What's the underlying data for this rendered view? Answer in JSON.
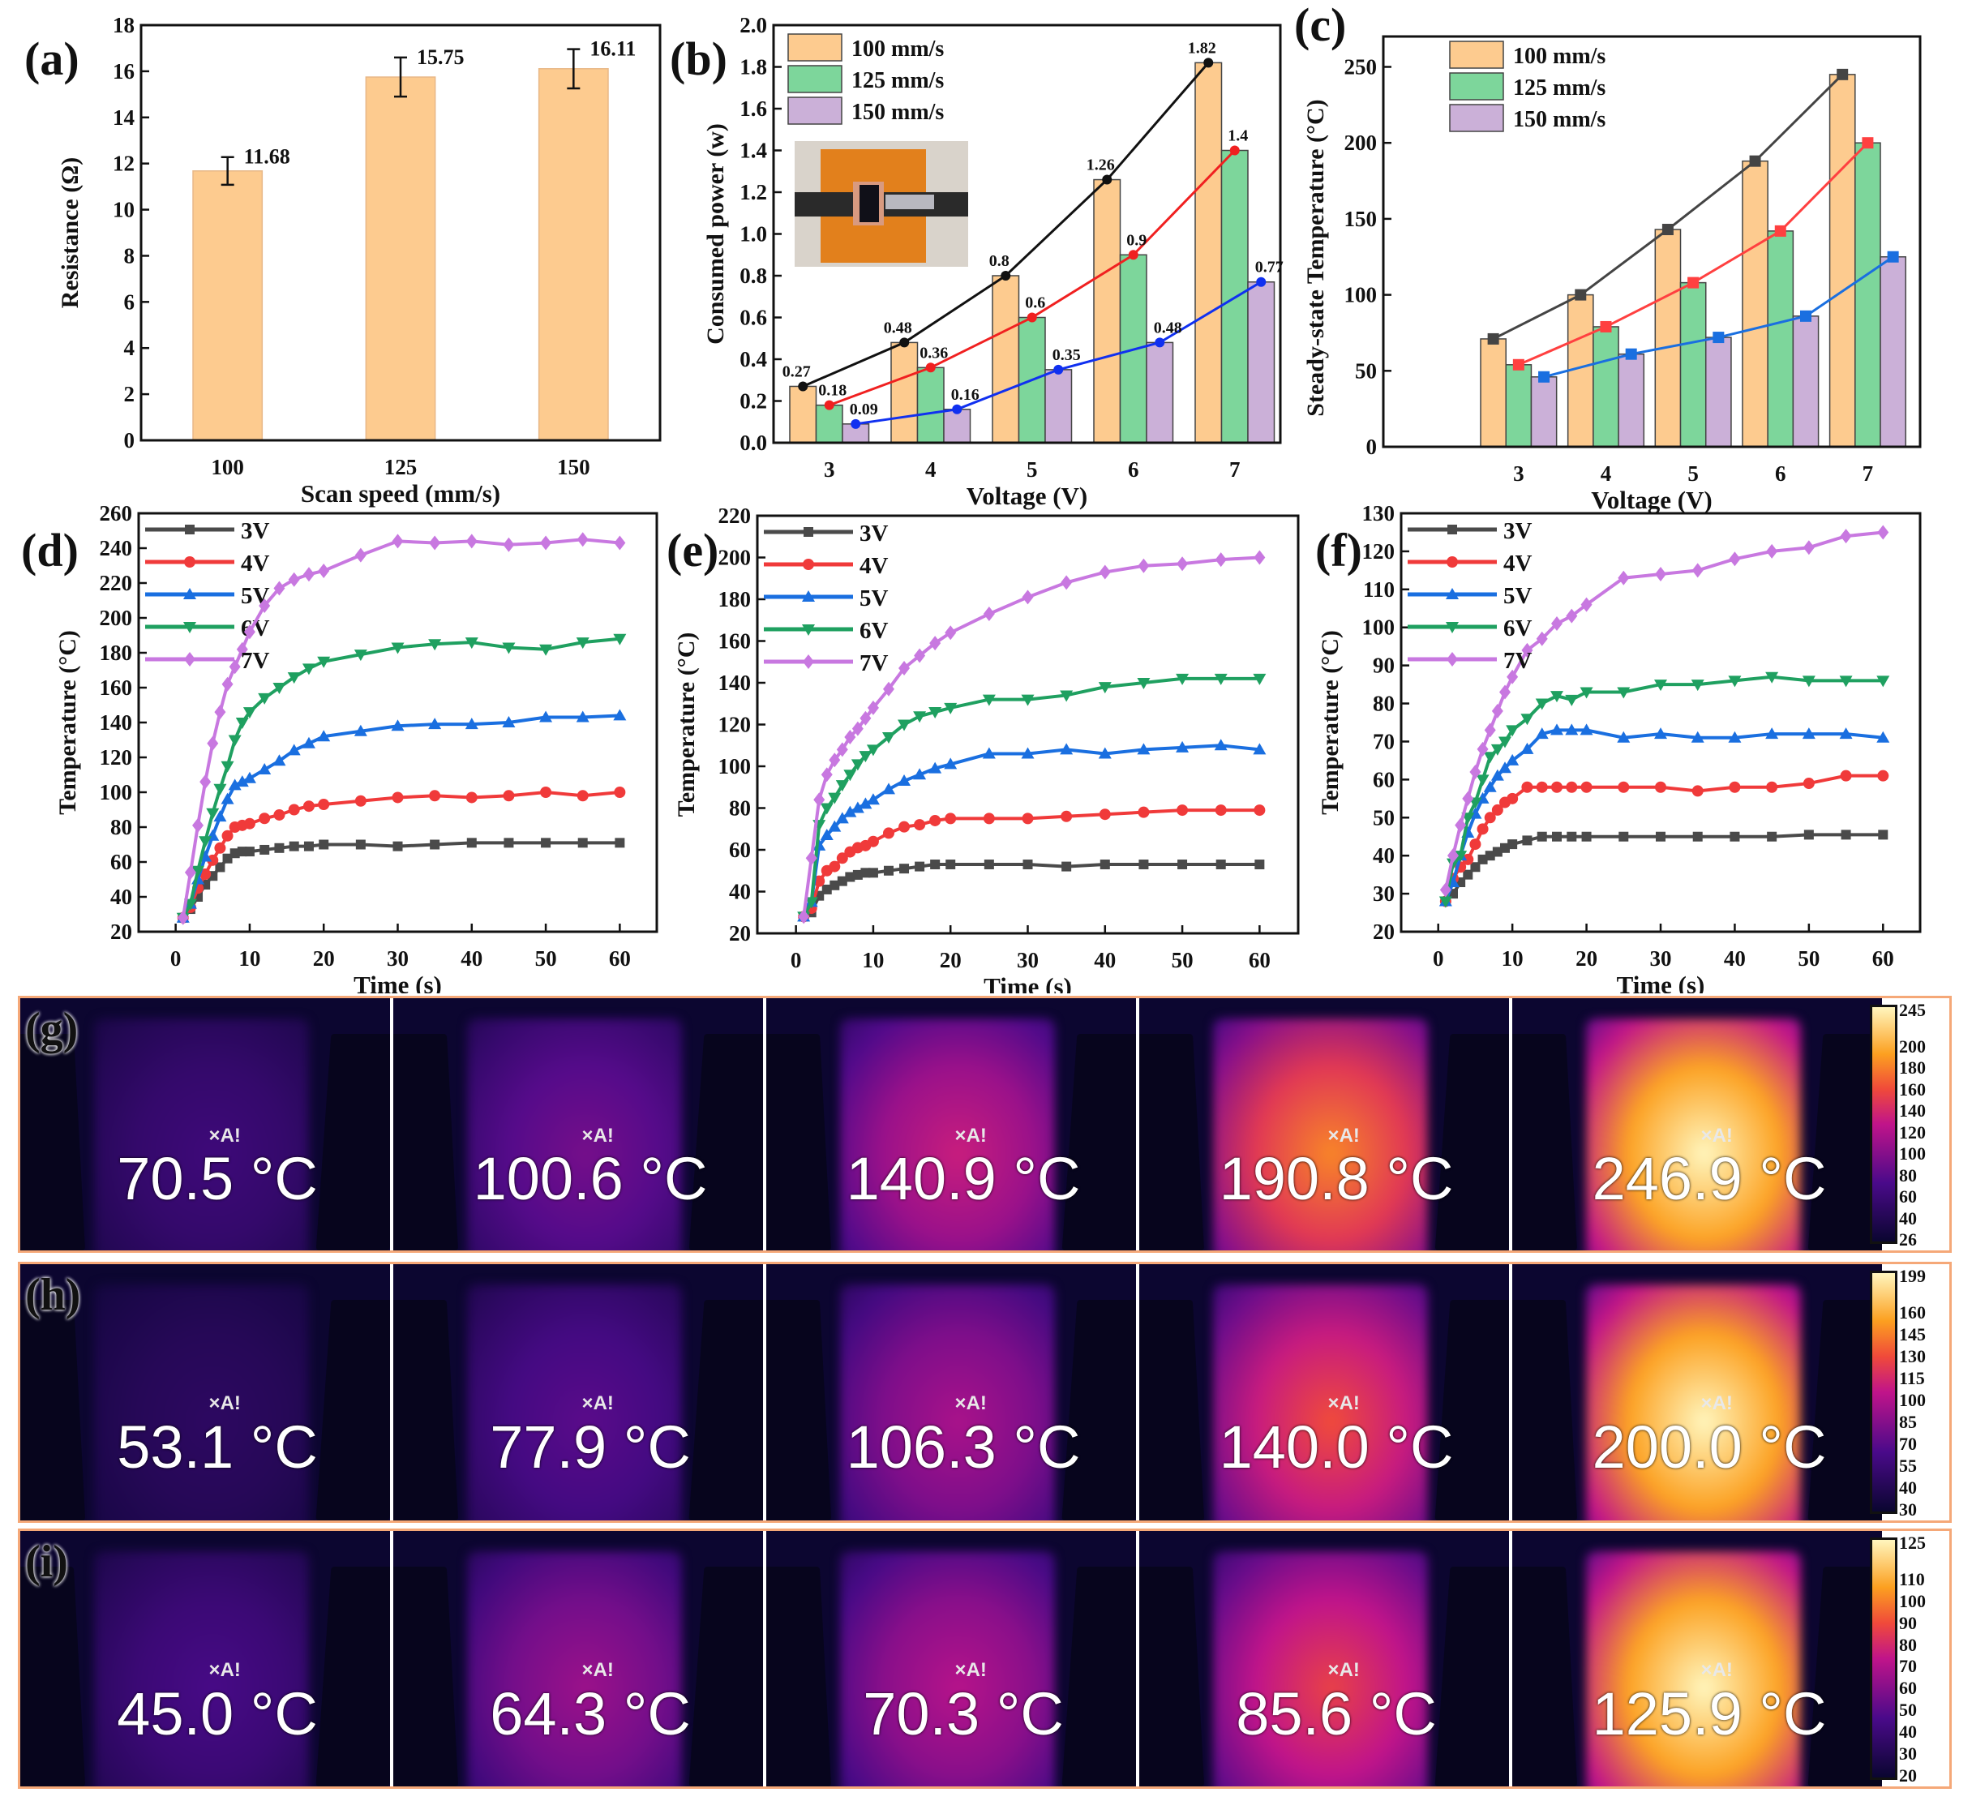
{
  "chart_data": [
    {
      "panel": "(a)",
      "type": "bar",
      "categories": [
        "100",
        "125",
        "150"
      ],
      "values": [
        11.68,
        15.75,
        16.11
      ],
      "errors": [
        0.6,
        0.85,
        0.85
      ],
      "data_labels": [
        "11.68",
        "15.75",
        "16.11"
      ],
      "xlabel": "Scan speed (mm/s)",
      "ylabel": "Resistance (Ω)",
      "ylim": [
        0,
        18
      ],
      "yticks": [
        "0",
        "2",
        "4",
        "6",
        "8",
        "10",
        "12",
        "14",
        "16",
        "18"
      ],
      "color": "#fdcb8f"
    },
    {
      "panel": "(b)",
      "type": "bar",
      "categories": [
        "3",
        "4",
        "5",
        "6",
        "7"
      ],
      "xlabel": "Voltage (V)",
      "ylabel": "Consumed power (w)",
      "ylim": [
        0,
        2.0
      ],
      "yticks": [
        "0.0",
        "0.2",
        "0.4",
        "0.6",
        "0.8",
        "1.0",
        "1.2",
        "1.4",
        "1.6",
        "1.8",
        "2.0"
      ],
      "legend": "top-left",
      "series": [
        {
          "name": "100 mm/s",
          "values": [
            0.27,
            0.48,
            0.8,
            1.26,
            1.82
          ],
          "labels": [
            "0.27",
            "0.48",
            "0.8",
            "1.26",
            "1.82"
          ],
          "color": "#fdcb8f",
          "line_color": "#111111"
        },
        {
          "name": "125 mm/s",
          "values": [
            0.18,
            0.36,
            0.6,
            0.9,
            1.4
          ],
          "labels": [
            "0.18",
            "0.36",
            "0.6",
            "0.9",
            "1.4"
          ],
          "color": "#7dd69b",
          "line_color": "#f02020"
        },
        {
          "name": "150 mm/s",
          "values": [
            0.09,
            0.16,
            0.35,
            0.48,
            0.77
          ],
          "labels": [
            "0.09",
            "0.16",
            "0.35",
            "0.48",
            "0.77"
          ],
          "color": "#cbb0d8",
          "line_color": "#1030f0"
        }
      ]
    },
    {
      "panel": "(c)",
      "type": "bar",
      "categories": [
        "3",
        "4",
        "5",
        "6",
        "7"
      ],
      "xlabel": "Voltage (V)",
      "ylabel": "Steady-state Temperature (°C)",
      "ylim": [
        0,
        270
      ],
      "yticks": [
        "0",
        "50",
        "100",
        "150",
        "200",
        "250"
      ],
      "legend": "top-left",
      "series": [
        {
          "name": "100 mm/s",
          "values": [
            71,
            100,
            143,
            188,
            245
          ],
          "color": "#fdcb8f",
          "line_color": "#444444"
        },
        {
          "name": "125 mm/s",
          "values": [
            54,
            79,
            108,
            142,
            200
          ],
          "color": "#7dd69b",
          "line_color": "#ff4040"
        },
        {
          "name": "150 mm/s",
          "values": [
            46,
            61,
            72,
            86,
            125
          ],
          "color": "#cbb0d8",
          "line_color": "#1a6fe0"
        }
      ]
    },
    {
      "panel": "(d)",
      "type": "line",
      "xlabel": "Time (s)",
      "ylabel": "Temperature (°C)",
      "xlim": [
        -5,
        65
      ],
      "ylim": [
        20,
        260
      ],
      "xticks": [
        "0",
        "10",
        "20",
        "30",
        "40",
        "50",
        "60"
      ],
      "yticks": [
        "20",
        "40",
        "60",
        "80",
        "100",
        "120",
        "140",
        "160",
        "180",
        "200",
        "220",
        "240",
        "260"
      ],
      "legend": "top-left",
      "x": [
        1,
        2,
        3,
        4,
        5,
        6,
        7,
        8,
        9,
        10,
        12,
        14,
        16,
        18,
        20,
        25,
        30,
        35,
        40,
        45,
        50,
        55,
        60
      ],
      "series": [
        {
          "name": "3V",
          "color": "#4a4a4a",
          "marker": "square",
          "values": [
            28,
            33,
            40,
            47,
            52,
            57,
            62,
            65,
            66,
            66,
            67,
            68,
            69,
            69,
            70,
            70,
            69,
            70,
            71,
            71,
            71,
            71,
            71
          ]
        },
        {
          "name": "4V",
          "color": "#f03a3a",
          "marker": "circle",
          "values": [
            28,
            34,
            45,
            53,
            61,
            68,
            75,
            80,
            81,
            82,
            85,
            87,
            90,
            92,
            93,
            95,
            97,
            98,
            97,
            98,
            100,
            98,
            100
          ]
        },
        {
          "name": "5V",
          "color": "#1a6fe0",
          "marker": "triangle-up",
          "values": [
            28,
            36,
            50,
            63,
            75,
            86,
            96,
            104,
            106,
            108,
            113,
            118,
            124,
            128,
            132,
            135,
            138,
            139,
            139,
            140,
            143,
            143,
            144
          ]
        },
        {
          "name": "6V",
          "color": "#1fa060",
          "marker": "triangle-down",
          "values": [
            28,
            36,
            55,
            72,
            88,
            102,
            115,
            130,
            140,
            146,
            154,
            160,
            166,
            171,
            175,
            179,
            183,
            185,
            186,
            183,
            182,
            186,
            188
          ]
        },
        {
          "name": "7V",
          "color": "#c878e0",
          "marker": "diamond",
          "values": [
            28,
            54,
            81,
            106,
            128,
            146,
            162,
            172,
            182,
            192,
            207,
            217,
            222,
            225,
            227,
            236,
            244,
            243,
            244,
            242,
            243,
            245,
            243
          ]
        }
      ]
    },
    {
      "panel": "(e)",
      "type": "line",
      "xlabel": "Time (s)",
      "ylabel": "Temperature (°C)",
      "xlim": [
        -5,
        65
      ],
      "ylim": [
        20,
        220
      ],
      "xticks": [
        "0",
        "10",
        "20",
        "30",
        "40",
        "50",
        "60"
      ],
      "yticks": [
        "20",
        "40",
        "60",
        "80",
        "100",
        "120",
        "140",
        "160",
        "180",
        "200",
        "220"
      ],
      "legend": "top-left",
      "x": [
        1,
        2,
        3,
        4,
        5,
        6,
        7,
        8,
        9,
        10,
        12,
        14,
        16,
        18,
        20,
        25,
        30,
        35,
        40,
        45,
        50,
        55,
        60
      ],
      "series": [
        {
          "name": "3V",
          "color": "#4a4a4a",
          "marker": "square",
          "values": [
            28,
            30,
            38,
            41,
            43,
            45,
            47,
            48,
            49,
            49,
            50,
            51,
            52,
            53,
            53,
            53,
            53,
            52,
            53,
            53,
            53,
            53,
            53
          ]
        },
        {
          "name": "4V",
          "color": "#f03a3a",
          "marker": "circle",
          "values": [
            28,
            32,
            45,
            50,
            52,
            56,
            59,
            61,
            62,
            64,
            68,
            71,
            72,
            74,
            75,
            75,
            75,
            76,
            77,
            78,
            79,
            79,
            79
          ]
        },
        {
          "name": "5V",
          "color": "#1a6fe0",
          "marker": "triangle-up",
          "values": [
            28,
            35,
            62,
            67,
            71,
            75,
            78,
            80,
            82,
            84,
            89,
            93,
            96,
            99,
            101,
            106,
            106,
            108,
            106,
            108,
            109,
            110,
            108
          ]
        },
        {
          "name": "6V",
          "color": "#1fa060",
          "marker": "triangle-down",
          "values": [
            28,
            35,
            72,
            80,
            85,
            91,
            96,
            101,
            105,
            108,
            114,
            120,
            124,
            126,
            128,
            132,
            132,
            134,
            138,
            140,
            142,
            142,
            142
          ]
        },
        {
          "name": "7V",
          "color": "#c878e0",
          "marker": "diamond",
          "values": [
            28,
            56,
            84,
            96,
            103,
            108,
            114,
            118,
            123,
            128,
            137,
            147,
            153,
            159,
            164,
            173,
            181,
            188,
            193,
            196,
            197,
            199,
            200
          ]
        }
      ]
    },
    {
      "panel": "(f)",
      "type": "line",
      "xlabel": "Time (s)",
      "ylabel": "Temperature (°C)",
      "xlim": [
        -5,
        65
      ],
      "ylim": [
        20,
        130
      ],
      "xticks": [
        "0",
        "10",
        "20",
        "30",
        "40",
        "50",
        "60"
      ],
      "yticks": [
        "20",
        "30",
        "40",
        "50",
        "60",
        "70",
        "80",
        "90",
        "100",
        "110",
        "120",
        "130"
      ],
      "legend": "top-left",
      "x": [
        1,
        2,
        3,
        4,
        5,
        6,
        7,
        8,
        9,
        10,
        12,
        14,
        16,
        18,
        20,
        25,
        30,
        35,
        40,
        45,
        50,
        55,
        60
      ],
      "series": [
        {
          "name": "3V",
          "color": "#4a4a4a",
          "marker": "square",
          "values": [
            28,
            30,
            33,
            35,
            37,
            39,
            40,
            41,
            42,
            43,
            44,
            45,
            45,
            45,
            45,
            45,
            45,
            45,
            45,
            45,
            45.5,
            45.5,
            45.5
          ]
        },
        {
          "name": "4V",
          "color": "#f03a3a",
          "marker": "circle",
          "values": [
            28,
            34,
            37,
            39,
            43,
            47,
            50,
            52,
            54,
            55,
            58,
            58,
            58,
            58,
            58,
            58,
            58,
            57,
            58,
            58,
            59,
            61,
            61
          ]
        },
        {
          "name": "5V",
          "color": "#1a6fe0",
          "marker": "triangle-up",
          "values": [
            28,
            33,
            40,
            46,
            51,
            55,
            58,
            61,
            63,
            65,
            68,
            72,
            73,
            73,
            73,
            71,
            72,
            71,
            71,
            72,
            72,
            72,
            71
          ]
        },
        {
          "name": "6V",
          "color": "#1fa060",
          "marker": "triangle-down",
          "values": [
            28,
            38,
            40,
            50,
            54,
            60,
            66,
            68,
            70,
            73,
            76,
            80,
            82,
            81,
            83,
            83,
            85,
            85,
            86,
            87,
            86,
            86,
            86
          ]
        },
        {
          "name": "7V",
          "color": "#c878e0",
          "marker": "diamond",
          "values": [
            31,
            40,
            48,
            55,
            62,
            68,
            73,
            78,
            83,
            87,
            94,
            97,
            101,
            103,
            106,
            113,
            114,
            115,
            118,
            120,
            121,
            124,
            125
          ]
        }
      ]
    }
  ],
  "thermal": [
    {
      "panel": "(g)",
      "marker": "×A!",
      "temps": [
        "70.5 °C",
        "100.6 °C",
        "140.9 °C",
        "190.8 °C",
        "246.9 °C"
      ],
      "colorbar": [
        "245",
        "200",
        "180",
        "160",
        "140",
        "120",
        "100",
        "80",
        "60",
        "40",
        "26"
      ]
    },
    {
      "panel": "(h)",
      "marker": "×A!",
      "temps": [
        "53.1 °C",
        "77.9 °C",
        "106.3 °C",
        "140.0 °C",
        "200.0 °C"
      ],
      "colorbar": [
        "199",
        "160",
        "145",
        "130",
        "115",
        "100",
        "85",
        "70",
        "55",
        "40",
        "30"
      ]
    },
    {
      "panel": "(i)",
      "marker": "×A!",
      "temps": [
        "45.0 °C",
        "64.3 °C",
        "70.3 °C",
        "85.6 °C",
        "125.9 °C"
      ],
      "colorbar": [
        "125",
        "110",
        "100",
        "90",
        "80",
        "70",
        "60",
        "50",
        "40",
        "30",
        "20"
      ]
    }
  ]
}
